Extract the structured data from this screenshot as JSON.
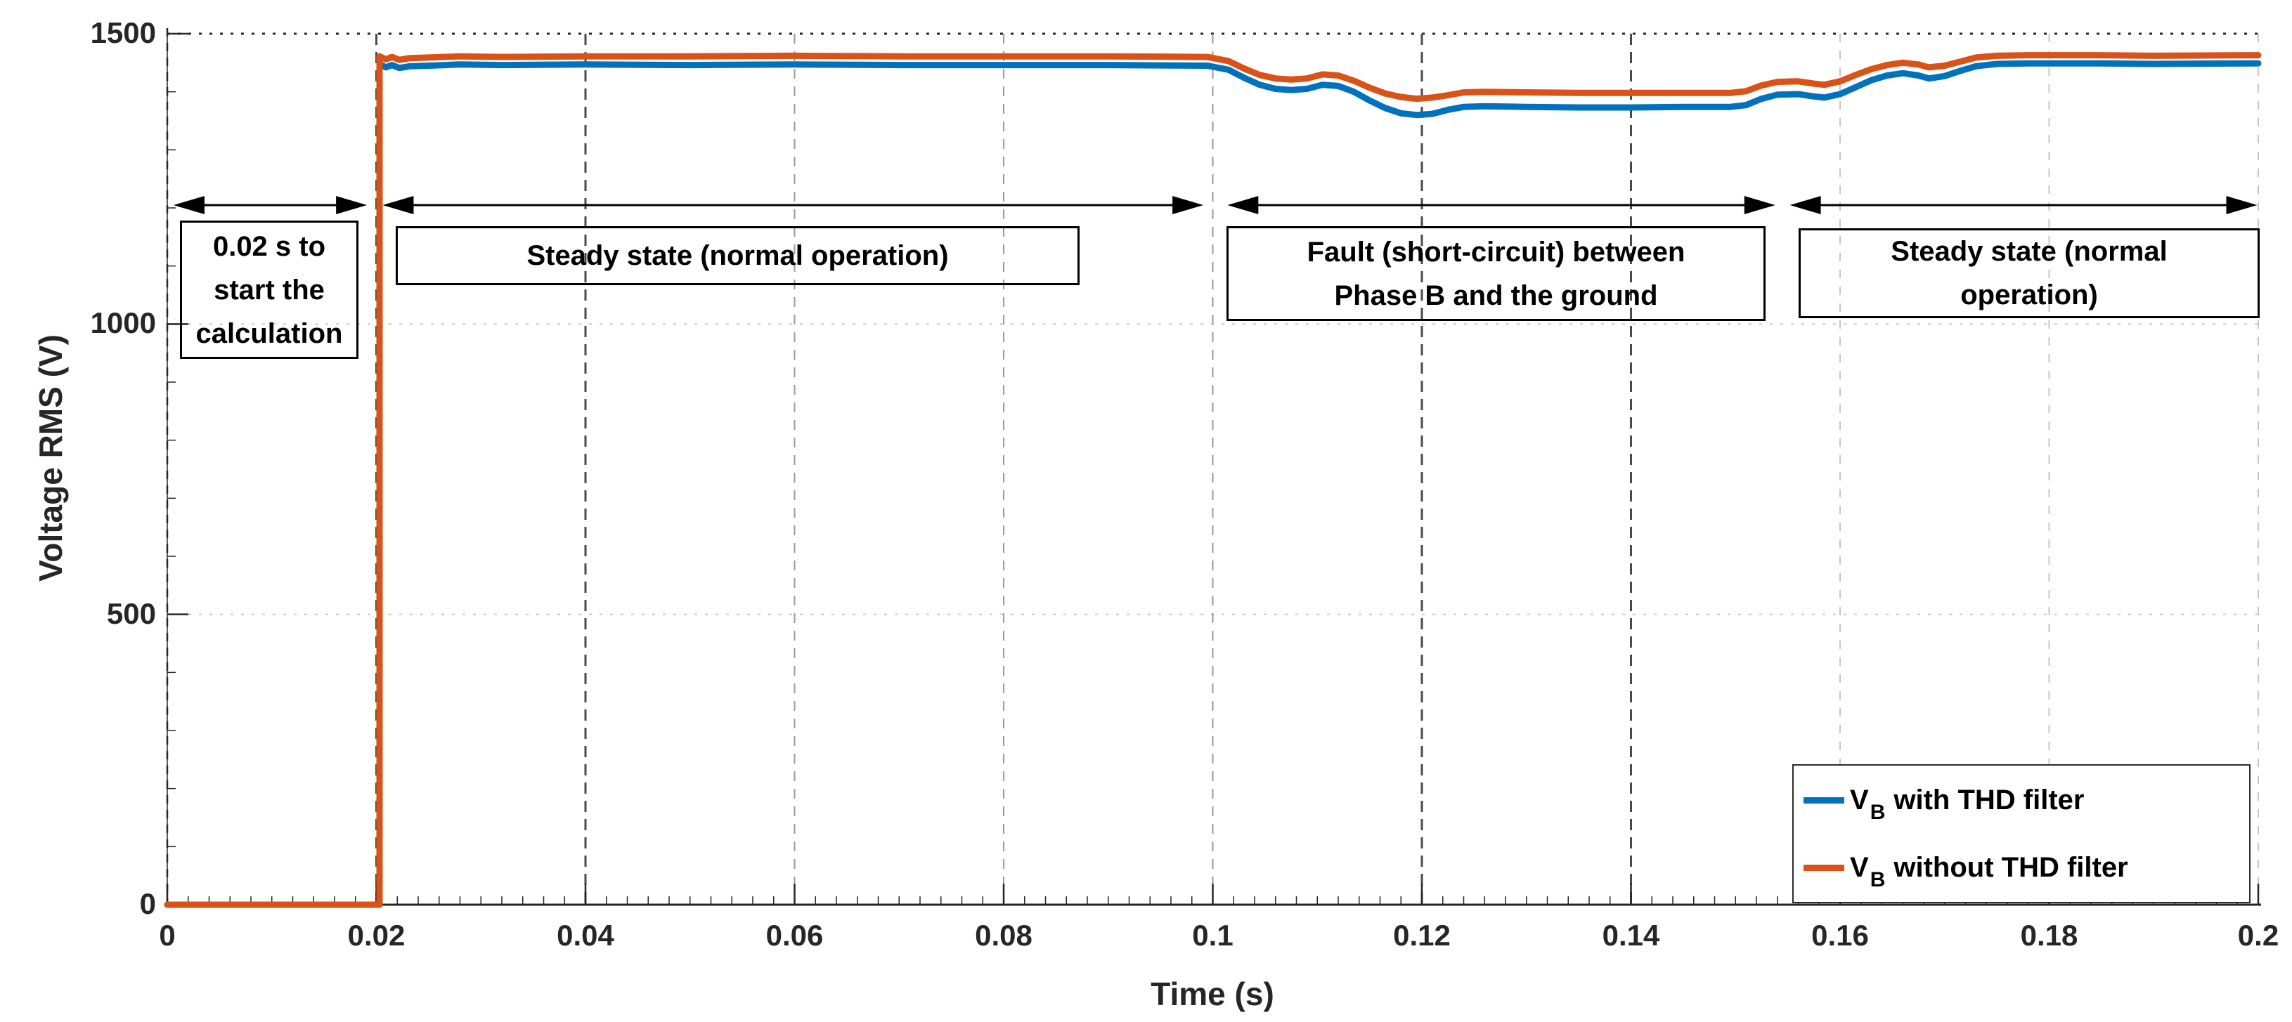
{
  "chart_data": {
    "type": "line",
    "title": "",
    "xlabel": "Time (s)",
    "ylabel": "Voltage RMS (V)",
    "xlim": [
      0,
      0.2
    ],
    "ylim": [
      0,
      1500
    ],
    "x_ticks": [
      0,
      0.02,
      0.04,
      0.06,
      0.08,
      0.1,
      0.12,
      0.14,
      0.16,
      0.18,
      0.2
    ],
    "x_tick_labels": [
      "0",
      "0.02",
      "0.04",
      "0.06",
      "0.08",
      "0.1",
      "0.12",
      "0.14",
      "0.16",
      "0.18",
      "0.2"
    ],
    "y_ticks": [
      0,
      500,
      1000,
      1500
    ],
    "y_tick_labels": [
      "0",
      "500",
      "1000",
      "1500"
    ],
    "grid": "on",
    "x_minor_tick_step": 0.002,
    "y_minor_tick_step": 100,
    "grid_dark_x_ticks": [
      0.02,
      0.04,
      0.12,
      0.14
    ],
    "grid_medium_x_ticks": [
      0.06,
      0.08,
      0.1
    ],
    "legend_position": "lower-right",
    "axis_color": "#262626",
    "grid_light_color": "#c6c6c6",
    "grid_dark_color": "#4a4a4a",
    "grid_medium_color": "#9a9a9a",
    "series": [
      {
        "name": "V_B with THD filter",
        "color": "#0072BD",
        "linewidth": 9,
        "points": [
          [
            0,
            0
          ],
          [
            0.0203,
            0
          ],
          [
            0.0203,
            1448
          ],
          [
            0.0209,
            1442
          ],
          [
            0.0215,
            1446
          ],
          [
            0.0222,
            1441
          ],
          [
            0.0232,
            1444
          ],
          [
            0.025,
            1445
          ],
          [
            0.028,
            1447
          ],
          [
            0.032,
            1446
          ],
          [
            0.04,
            1447
          ],
          [
            0.05,
            1446
          ],
          [
            0.06,
            1447
          ],
          [
            0.07,
            1446
          ],
          [
            0.08,
            1446
          ],
          [
            0.09,
            1446
          ],
          [
            0.0995,
            1445
          ],
          [
            0.1015,
            1438
          ],
          [
            0.103,
            1424
          ],
          [
            0.1045,
            1412
          ],
          [
            0.106,
            1405
          ],
          [
            0.1075,
            1403
          ],
          [
            0.109,
            1405
          ],
          [
            0.1105,
            1412
          ],
          [
            0.112,
            1410
          ],
          [
            0.1135,
            1400
          ],
          [
            0.115,
            1385
          ],
          [
            0.1165,
            1372
          ],
          [
            0.118,
            1363
          ],
          [
            0.1195,
            1360
          ],
          [
            0.121,
            1362
          ],
          [
            0.1225,
            1369
          ],
          [
            0.124,
            1374
          ],
          [
            0.126,
            1375
          ],
          [
            0.13,
            1374
          ],
          [
            0.135,
            1373
          ],
          [
            0.14,
            1373
          ],
          [
            0.145,
            1374
          ],
          [
            0.1495,
            1374
          ],
          [
            0.151,
            1377
          ],
          [
            0.1525,
            1388
          ],
          [
            0.154,
            1395
          ],
          [
            0.156,
            1396
          ],
          [
            0.1575,
            1392
          ],
          [
            0.1585,
            1390
          ],
          [
            0.16,
            1396
          ],
          [
            0.1615,
            1408
          ],
          [
            0.163,
            1420
          ],
          [
            0.1645,
            1428
          ],
          [
            0.166,
            1432
          ],
          [
            0.1675,
            1428
          ],
          [
            0.1685,
            1423
          ],
          [
            0.17,
            1427
          ],
          [
            0.1715,
            1436
          ],
          [
            0.173,
            1444
          ],
          [
            0.175,
            1448
          ],
          [
            0.178,
            1449
          ],
          [
            0.185,
            1449
          ],
          [
            0.19,
            1448
          ],
          [
            0.2,
            1449
          ]
        ]
      },
      {
        "name": "V_B without THD filter",
        "color": "#D95319",
        "linewidth": 9,
        "points": [
          [
            0,
            0
          ],
          [
            0.0203,
            0
          ],
          [
            0.0203,
            1461
          ],
          [
            0.0209,
            1456
          ],
          [
            0.0215,
            1460
          ],
          [
            0.0222,
            1455
          ],
          [
            0.0232,
            1458
          ],
          [
            0.025,
            1459
          ],
          [
            0.028,
            1461
          ],
          [
            0.032,
            1460
          ],
          [
            0.04,
            1461
          ],
          [
            0.05,
            1461
          ],
          [
            0.06,
            1462
          ],
          [
            0.07,
            1461
          ],
          [
            0.08,
            1461
          ],
          [
            0.09,
            1461
          ],
          [
            0.0995,
            1460
          ],
          [
            0.1015,
            1453
          ],
          [
            0.103,
            1440
          ],
          [
            0.1045,
            1429
          ],
          [
            0.106,
            1423
          ],
          [
            0.1075,
            1421
          ],
          [
            0.109,
            1423
          ],
          [
            0.1105,
            1430
          ],
          [
            0.112,
            1428
          ],
          [
            0.1135,
            1419
          ],
          [
            0.115,
            1407
          ],
          [
            0.1165,
            1397
          ],
          [
            0.118,
            1391
          ],
          [
            0.1195,
            1388
          ],
          [
            0.121,
            1390
          ],
          [
            0.1225,
            1394
          ],
          [
            0.124,
            1399
          ],
          [
            0.126,
            1400
          ],
          [
            0.13,
            1399
          ],
          [
            0.135,
            1398
          ],
          [
            0.14,
            1398
          ],
          [
            0.145,
            1398
          ],
          [
            0.1495,
            1398
          ],
          [
            0.151,
            1401
          ],
          [
            0.1525,
            1411
          ],
          [
            0.154,
            1417
          ],
          [
            0.156,
            1418
          ],
          [
            0.1575,
            1414
          ],
          [
            0.1585,
            1412
          ],
          [
            0.16,
            1418
          ],
          [
            0.1615,
            1429
          ],
          [
            0.163,
            1439
          ],
          [
            0.1645,
            1446
          ],
          [
            0.166,
            1450
          ],
          [
            0.1675,
            1447
          ],
          [
            0.1685,
            1442
          ],
          [
            0.17,
            1445
          ],
          [
            0.1715,
            1452
          ],
          [
            0.173,
            1459
          ],
          [
            0.175,
            1462
          ],
          [
            0.178,
            1463
          ],
          [
            0.185,
            1463
          ],
          [
            0.19,
            1462
          ],
          [
            0.2,
            1463
          ]
        ]
      }
    ],
    "annotations": [
      {
        "text": "0.02 s to\nstart the\ncalculation",
        "arrow_t": [
          0.0006,
          0.0191
        ]
      },
      {
        "text": "Steady state (normal operation)",
        "arrow_t": [
          0.0206,
          0.0991
        ]
      },
      {
        "text": "Fault (short-circuit) between\nPhase B and the ground",
        "arrow_t": [
          0.1014,
          0.1538
        ]
      },
      {
        "text": "Steady state (normal\noperation)",
        "arrow_t": [
          0.1552,
          0.1999
        ]
      }
    ],
    "arrow_color": "#000000"
  },
  "legend": {
    "items": [
      {
        "symbol": "V",
        "sub": "B",
        "label": "with THD filter",
        "color": "#0072BD"
      },
      {
        "symbol": "V",
        "sub": "B",
        "label": "without THD filter",
        "color": "#D95319"
      }
    ]
  }
}
